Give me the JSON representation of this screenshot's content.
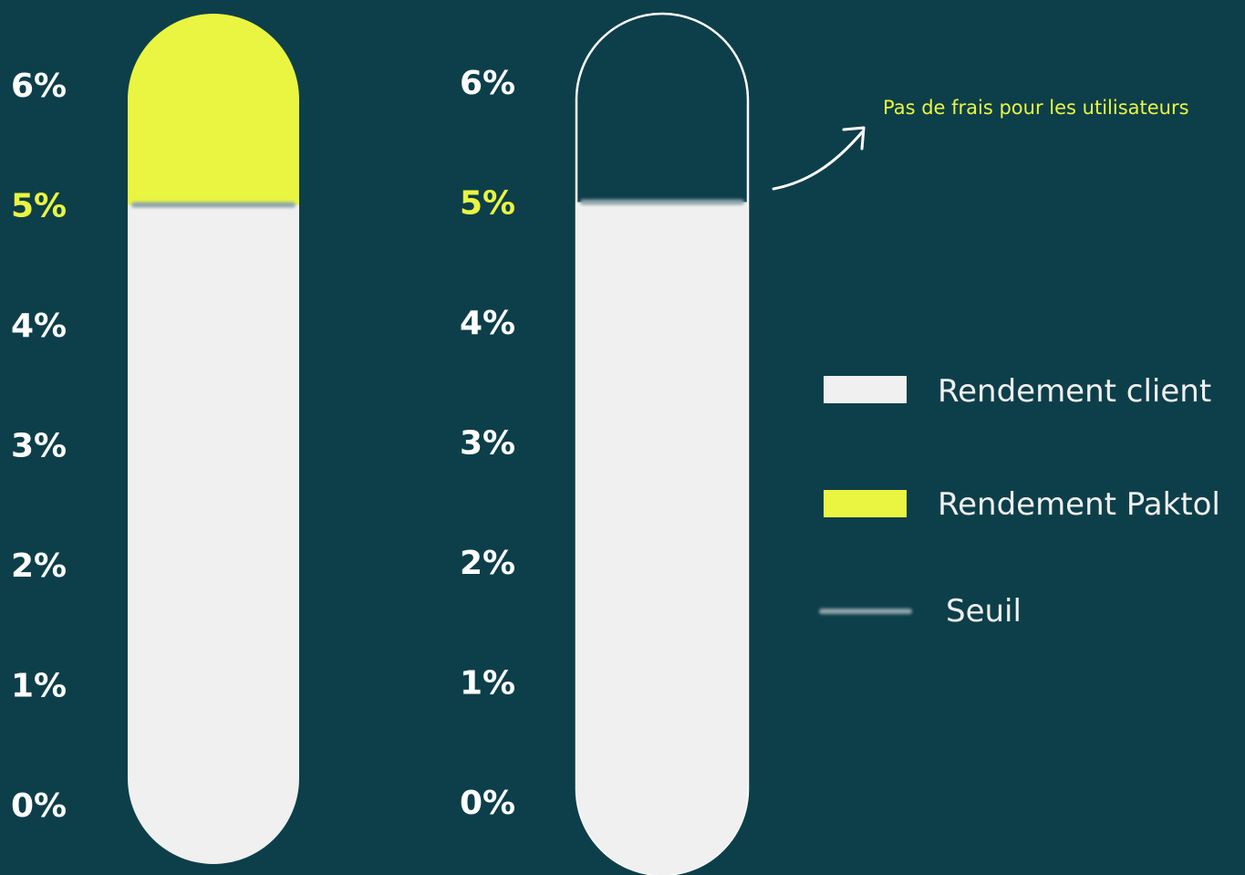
{
  "colors": {
    "background": "#0d3f4a",
    "client": "#f0f0f0",
    "paktol": "#eaf542",
    "threshold": "#8fa4ab",
    "tick": "#ffffff",
    "tick_highlight": "#eaf542",
    "annotation": "#eaf542",
    "outline": "#ffffff"
  },
  "chart_data": [
    {
      "type": "bar",
      "ylim": [
        0,
        6
      ],
      "yticks": [
        "0%",
        "1%",
        "2%",
        "3%",
        "4%",
        "5%",
        "6%"
      ],
      "highlight_tick": "5%",
      "series": [
        {
          "name": "Rendement client",
          "values": [
            5
          ]
        },
        {
          "name": "Rendement Paktol",
          "values": [
            1
          ]
        }
      ],
      "threshold": 5
    },
    {
      "type": "bar",
      "ylim": [
        0,
        6
      ],
      "yticks": [
        "0%",
        "1%",
        "2%",
        "3%",
        "4%",
        "5%",
        "6%"
      ],
      "highlight_tick": "5%",
      "series": [
        {
          "name": "Rendement client",
          "values": [
            5
          ]
        },
        {
          "name": "Rendement Paktol",
          "values": [
            0
          ]
        }
      ],
      "threshold": 5,
      "annotation": "Pas de frais pour les utilisateurs"
    }
  ],
  "legend": [
    {
      "label": "Rendement client",
      "kind": "swatch",
      "color": "#f0f0f0"
    },
    {
      "label": "Rendement Paktol",
      "kind": "swatch",
      "color": "#eaf542"
    },
    {
      "label": "Seuil",
      "kind": "line",
      "color": "#8fa4ab"
    }
  ]
}
